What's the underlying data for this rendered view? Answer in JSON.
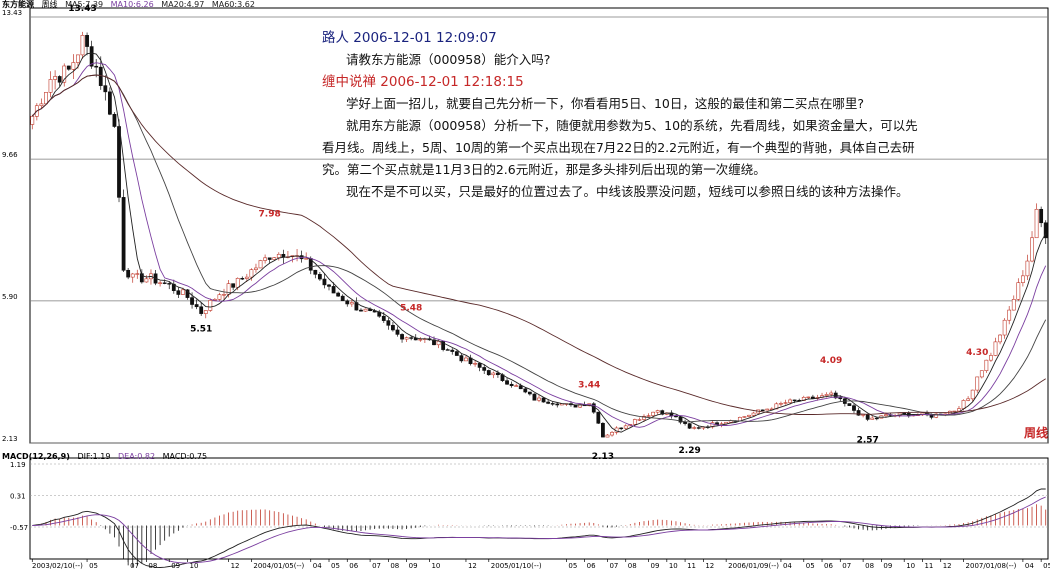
{
  "header": {
    "stock": "东方能源",
    "period": "周线",
    "ma": [
      {
        "label": "MA5:7.39",
        "color": "#222222"
      },
      {
        "label": "MA10:6.26",
        "color": "#7b3fa0"
      },
      {
        "label": "MA20:4.97",
        "color": "#222222"
      },
      {
        "label": "MA60:3.62",
        "color": "#222222"
      }
    ]
  },
  "macd_header": {
    "title": "MACD(12,26,9)",
    "dif": "DIF:1.19",
    "dea": "DEA:0.82",
    "macd": "MACD:0.75"
  },
  "post": {
    "author1": "路人 2006-12-01 12:09:07",
    "q": "请教东方能源（000958）能介入吗?",
    "author2": "缠中说禅 2006-12-01 12:18:15",
    "p1": "学好上面一招儿，就要自己先分析一下，你看看用5日、10日，这般的最佳和第二买点在哪里?",
    "p2": "就用东方能源（000958）分析一下，随便就用参数为5、10的系统，先看周线，如果资金量大，可以先看月线。周线上，5周、10周的第一个买点出现在7月22日的2.2元附近，有一个典型的背驰，具体自己去研究。第二个买点就是11月3日的2.6元附近，那是多头排列后出现的第一次缠绕。",
    "p3": "现在不是不可以买，只是最好的位置过去了。中线该股票没问题，短线可以参照日线的该种方法操作。"
  },
  "period_tag": "周线",
  "chart_data": {
    "type": "candlestick",
    "y_ticks": [
      "13.43",
      "9.66",
      "5.90",
      "2.13"
    ],
    "y_tick_values": [
      13.43,
      9.66,
      5.9,
      2.13
    ],
    "ylim": [
      2.13,
      13.43
    ],
    "macd_y_ticks": [
      "1.19",
      "0.31",
      "-0.57"
    ],
    "macd_y_values": [
      1.19,
      0.31,
      -0.57
    ],
    "x_tick_labels": [
      "2003/02/10(--)",
      "05",
      "07",
      "08",
      "09",
      "10",
      "12",
      "2004/01/05(--)",
      "04",
      "05",
      "06",
      "07",
      "08",
      "09",
      "10",
      "12",
      "2005/01/10(--)",
      "05",
      "06",
      "07",
      "08",
      "09",
      "10",
      "11",
      "12",
      "2006/01/09(--)",
      "04",
      "05",
      "06",
      "07",
      "08",
      "09",
      "10",
      "11",
      "12",
      "2007/01/08(--)",
      "04",
      "05"
    ],
    "x_tick_weeks": [
      0,
      12,
      21,
      25,
      30,
      34,
      43,
      48,
      61,
      65,
      69,
      74,
      78,
      82,
      87,
      95,
      100,
      117,
      121,
      126,
      130,
      135,
      139,
      143,
      147,
      152,
      164,
      169,
      173,
      177,
      182,
      186,
      191,
      195,
      199,
      204,
      217,
      221
    ],
    "annotations": [
      {
        "text": "13.43",
        "week": 11,
        "value": 13.43,
        "color": "#000000"
      },
      {
        "text": "7.98",
        "week": 52,
        "value": 7.98,
        "color": "#c62828"
      },
      {
        "text": "5.51",
        "week": 37,
        "value": 5.51,
        "color": "#000000"
      },
      {
        "text": "5.48",
        "week": 83,
        "value": 5.48,
        "color": "#c62828"
      },
      {
        "text": "3.44",
        "week": 122,
        "value": 3.44,
        "color": "#c62828"
      },
      {
        "text": "2.13",
        "week": 125,
        "value": 2.13,
        "color": "#000000"
      },
      {
        "text": "2.29",
        "week": 144,
        "value": 2.29,
        "color": "#000000"
      },
      {
        "text": "4.09",
        "week": 175,
        "value": 4.09,
        "color": "#c62828"
      },
      {
        "text": "2.57",
        "week": 183,
        "value": 2.57,
        "color": "#000000"
      },
      {
        "text": "4.30",
        "week": 207,
        "value": 4.3,
        "color": "#c62828"
      }
    ],
    "price_anchors": [
      [
        0,
        10.8
      ],
      [
        4,
        11.8
      ],
      [
        8,
        12.0
      ],
      [
        11,
        12.8
      ],
      [
        14,
        12.1
      ],
      [
        17,
        11.0
      ],
      [
        18,
        10.5
      ],
      [
        20,
        6.8
      ],
      [
        22,
        6.5
      ],
      [
        26,
        6.5
      ],
      [
        30,
        6.3
      ],
      [
        34,
        6.0
      ],
      [
        37,
        5.6
      ],
      [
        41,
        6.1
      ],
      [
        45,
        6.4
      ],
      [
        49,
        6.8
      ],
      [
        52,
        7.1
      ],
      [
        56,
        7.2
      ],
      [
        60,
        6.9
      ],
      [
        65,
        6.2
      ],
      [
        70,
        5.8
      ],
      [
        75,
        5.5
      ],
      [
        80,
        5.0
      ],
      [
        85,
        4.9
      ],
      [
        90,
        4.7
      ],
      [
        95,
        4.3
      ],
      [
        100,
        4.0
      ],
      [
        105,
        3.7
      ],
      [
        110,
        3.3
      ],
      [
        115,
        3.2
      ],
      [
        118,
        3.1
      ],
      [
        122,
        3.2
      ],
      [
        124,
        2.7
      ],
      [
        125,
        2.3
      ],
      [
        128,
        2.5
      ],
      [
        133,
        2.8
      ],
      [
        137,
        3.0
      ],
      [
        141,
        2.8
      ],
      [
        144,
        2.5
      ],
      [
        148,
        2.6
      ],
      [
        155,
        2.8
      ],
      [
        160,
        3.0
      ],
      [
        165,
        3.2
      ],
      [
        170,
        3.3
      ],
      [
        175,
        3.4
      ],
      [
        180,
        3.0
      ],
      [
        183,
        2.75
      ],
      [
        187,
        2.85
      ],
      [
        192,
        2.9
      ],
      [
        197,
        2.85
      ],
      [
        202,
        3.0
      ],
      [
        205,
        3.3
      ],
      [
        207,
        3.9
      ],
      [
        210,
        4.5
      ],
      [
        213,
        5.3
      ],
      [
        216,
        6.3
      ],
      [
        218,
        7.0
      ],
      [
        219,
        7.6
      ],
      [
        220,
        8.2
      ],
      [
        222,
        7.7
      ]
    ]
  }
}
